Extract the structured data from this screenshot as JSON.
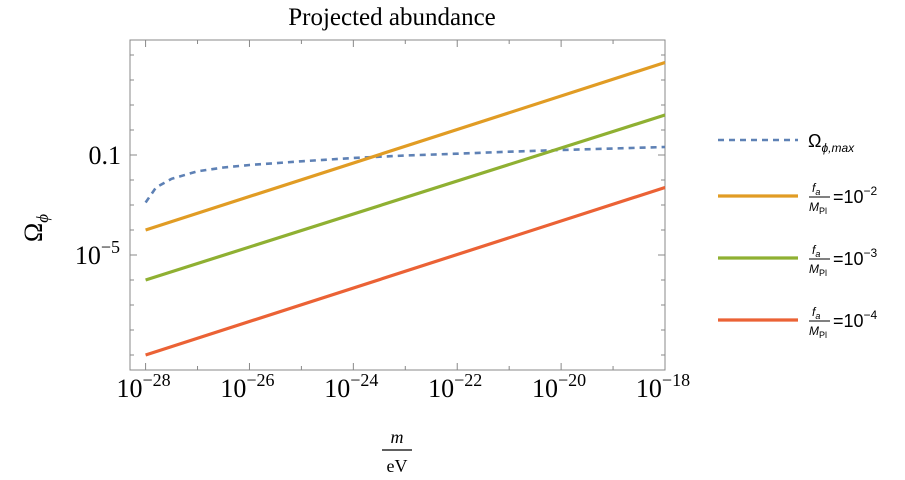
{
  "chart_data": {
    "type": "line",
    "title": "Projected abundance",
    "xlabel": {
      "numerator": "m",
      "denominator": "eV"
    },
    "ylabel": {
      "base": "Ω",
      "subscript": "ϕ"
    },
    "x_scale": "log",
    "y_scale": "log",
    "xlim_log10": [
      -28.3,
      -18
    ],
    "ylim_log10": [
      -9.6,
      3.6
    ],
    "x_ticks": [
      {
        "base": "10",
        "exp": "−28",
        "log10": -28
      },
      {
        "base": "10",
        "exp": "−26",
        "log10": -26
      },
      {
        "base": "10",
        "exp": "−24",
        "log10": -24
      },
      {
        "base": "10",
        "exp": "−22",
        "log10": -22
      },
      {
        "base": "10",
        "exp": "−20",
        "log10": -20
      },
      {
        "base": "10",
        "exp": "−18",
        "log10": -18
      }
    ],
    "y_ticks": [
      {
        "base": "0.1",
        "exp": "",
        "log10": -1
      },
      {
        "base": "10",
        "exp": "−5",
        "log10": -5
      }
    ],
    "grid": false,
    "legend_position": "right",
    "series": [
      {
        "name": "Ω_{ϕ,max}",
        "legend": {
          "base": "Ω",
          "sub": "ϕ,max"
        },
        "color": "#5e81b5",
        "style": "dashed",
        "x_log10": [
          -28,
          -27.8,
          -27.5,
          -27,
          -26.5,
          -26,
          -25,
          -24,
          -23,
          -22,
          -21,
          -20,
          -19,
          -18
        ],
        "y_log10": [
          -2.9,
          -2.3,
          -1.95,
          -1.65,
          -1.5,
          -1.4,
          -1.25,
          -1.12,
          -1.02,
          -0.95,
          -0.87,
          -0.8,
          -0.74,
          -0.68
        ]
      },
      {
        "name": "f_a/M_Pl = 10^-2",
        "legend": {
          "num": "f",
          "num_sub": "a",
          "den": "M",
          "den_sub": "Pl",
          "eq": "=10",
          "exp": "−2"
        },
        "color": "#e19c24",
        "style": "solid",
        "x_log10": [
          -28,
          -18
        ],
        "y_log10": [
          -4.0,
          2.7
        ]
      },
      {
        "name": "f_a/M_Pl = 10^-3",
        "legend": {
          "num": "f",
          "num_sub": "a",
          "den": "M",
          "den_sub": "Pl",
          "eq": "=10",
          "exp": "−3"
        },
        "color": "#8fb032",
        "style": "solid",
        "x_log10": [
          -28,
          -18
        ],
        "y_log10": [
          -6.0,
          0.6
        ]
      },
      {
        "name": "f_a/M_Pl = 10^-4",
        "legend": {
          "num": "f",
          "num_sub": "a",
          "den": "M",
          "den_sub": "Pl",
          "eq": "=10",
          "exp": "−4"
        },
        "color": "#eb6235",
        "style": "solid",
        "x_log10": [
          -28,
          -18
        ],
        "y_log10": [
          -9.0,
          -2.3
        ]
      }
    ]
  }
}
